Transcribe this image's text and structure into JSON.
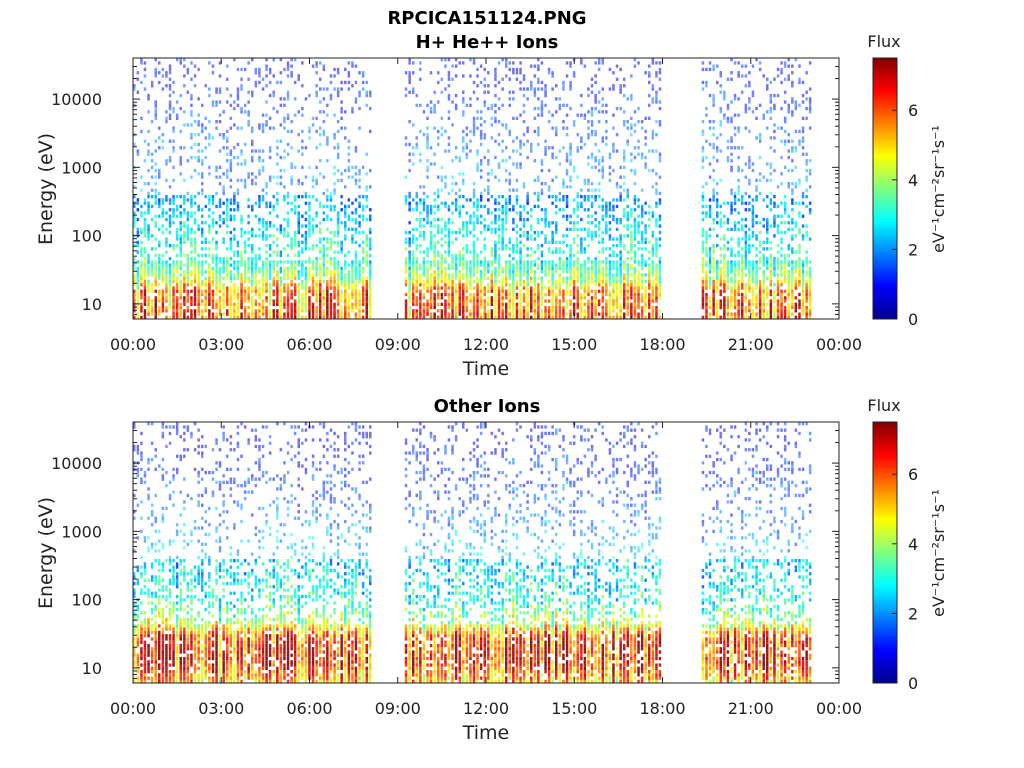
{
  "figure_title": "RPCICA151124.PNG",
  "chart_data": [
    {
      "type": "heatmap",
      "title": "H+ He++ Ions",
      "xlabel": "Time",
      "ylabel": "Energy (eV)",
      "x_ticks": [
        "00:00",
        "03:00",
        "06:00",
        "09:00",
        "12:00",
        "15:00",
        "18:00",
        "21:00",
        "00:00"
      ],
      "xlim_hours": [
        0,
        24
      ],
      "y_scale": "log",
      "y_ticks": [
        "10",
        "100",
        "1000",
        "10000"
      ],
      "ylim": [
        6,
        40000
      ],
      "colorbar": {
        "label": "Flux",
        "units": "eV⁻¹cm⁻²sr⁻¹s⁻¹",
        "ticks": [
          "0",
          "2",
          "4",
          "6"
        ],
        "range": [
          0,
          7.5
        ],
        "colormap": "jet"
      },
      "data_gaps_hours": [
        [
          8.2,
          9.2
        ],
        [
          18.1,
          19.3
        ]
      ],
      "data_end_hour": 23.1,
      "flux_profile_by_log_energy": [
        [
          0.78,
          6.0
        ],
        [
          1.2,
          5.6
        ],
        [
          1.35,
          4.2
        ],
        [
          1.6,
          3.2
        ],
        [
          2.0,
          2.8
        ],
        [
          2.6,
          2.0
        ],
        [
          3.4,
          1.7
        ],
        [
          4.3,
          1.0
        ]
      ]
    },
    {
      "type": "heatmap",
      "title": "Other Ions",
      "xlabel": "Time",
      "ylabel": "Energy (eV)",
      "x_ticks": [
        "00:00",
        "03:00",
        "06:00",
        "09:00",
        "12:00",
        "15:00",
        "18:00",
        "21:00",
        "00:00"
      ],
      "xlim_hours": [
        0,
        24
      ],
      "y_scale": "log",
      "y_ticks": [
        "10",
        "100",
        "1000",
        "10000"
      ],
      "ylim": [
        6,
        40000
      ],
      "colorbar": {
        "label": "Flux",
        "units": "eV⁻¹cm⁻²sr⁻¹s⁻¹",
        "ticks": [
          "0",
          "2",
          "4",
          "6"
        ],
        "range": [
          0,
          7.5
        ],
        "colormap": "jet"
      },
      "data_gaps_hours": [
        [
          8.2,
          9.2
        ],
        [
          18.1,
          19.3
        ]
      ],
      "data_end_hour": 23.1,
      "flux_profile_by_log_energy": [
        [
          0.78,
          5.2
        ],
        [
          1.1,
          6.6
        ],
        [
          1.45,
          6.2
        ],
        [
          1.65,
          4.2
        ],
        [
          2.0,
          3.0
        ],
        [
          2.7,
          2.4
        ],
        [
          3.5,
          1.5
        ],
        [
          4.3,
          1.0
        ]
      ]
    }
  ]
}
